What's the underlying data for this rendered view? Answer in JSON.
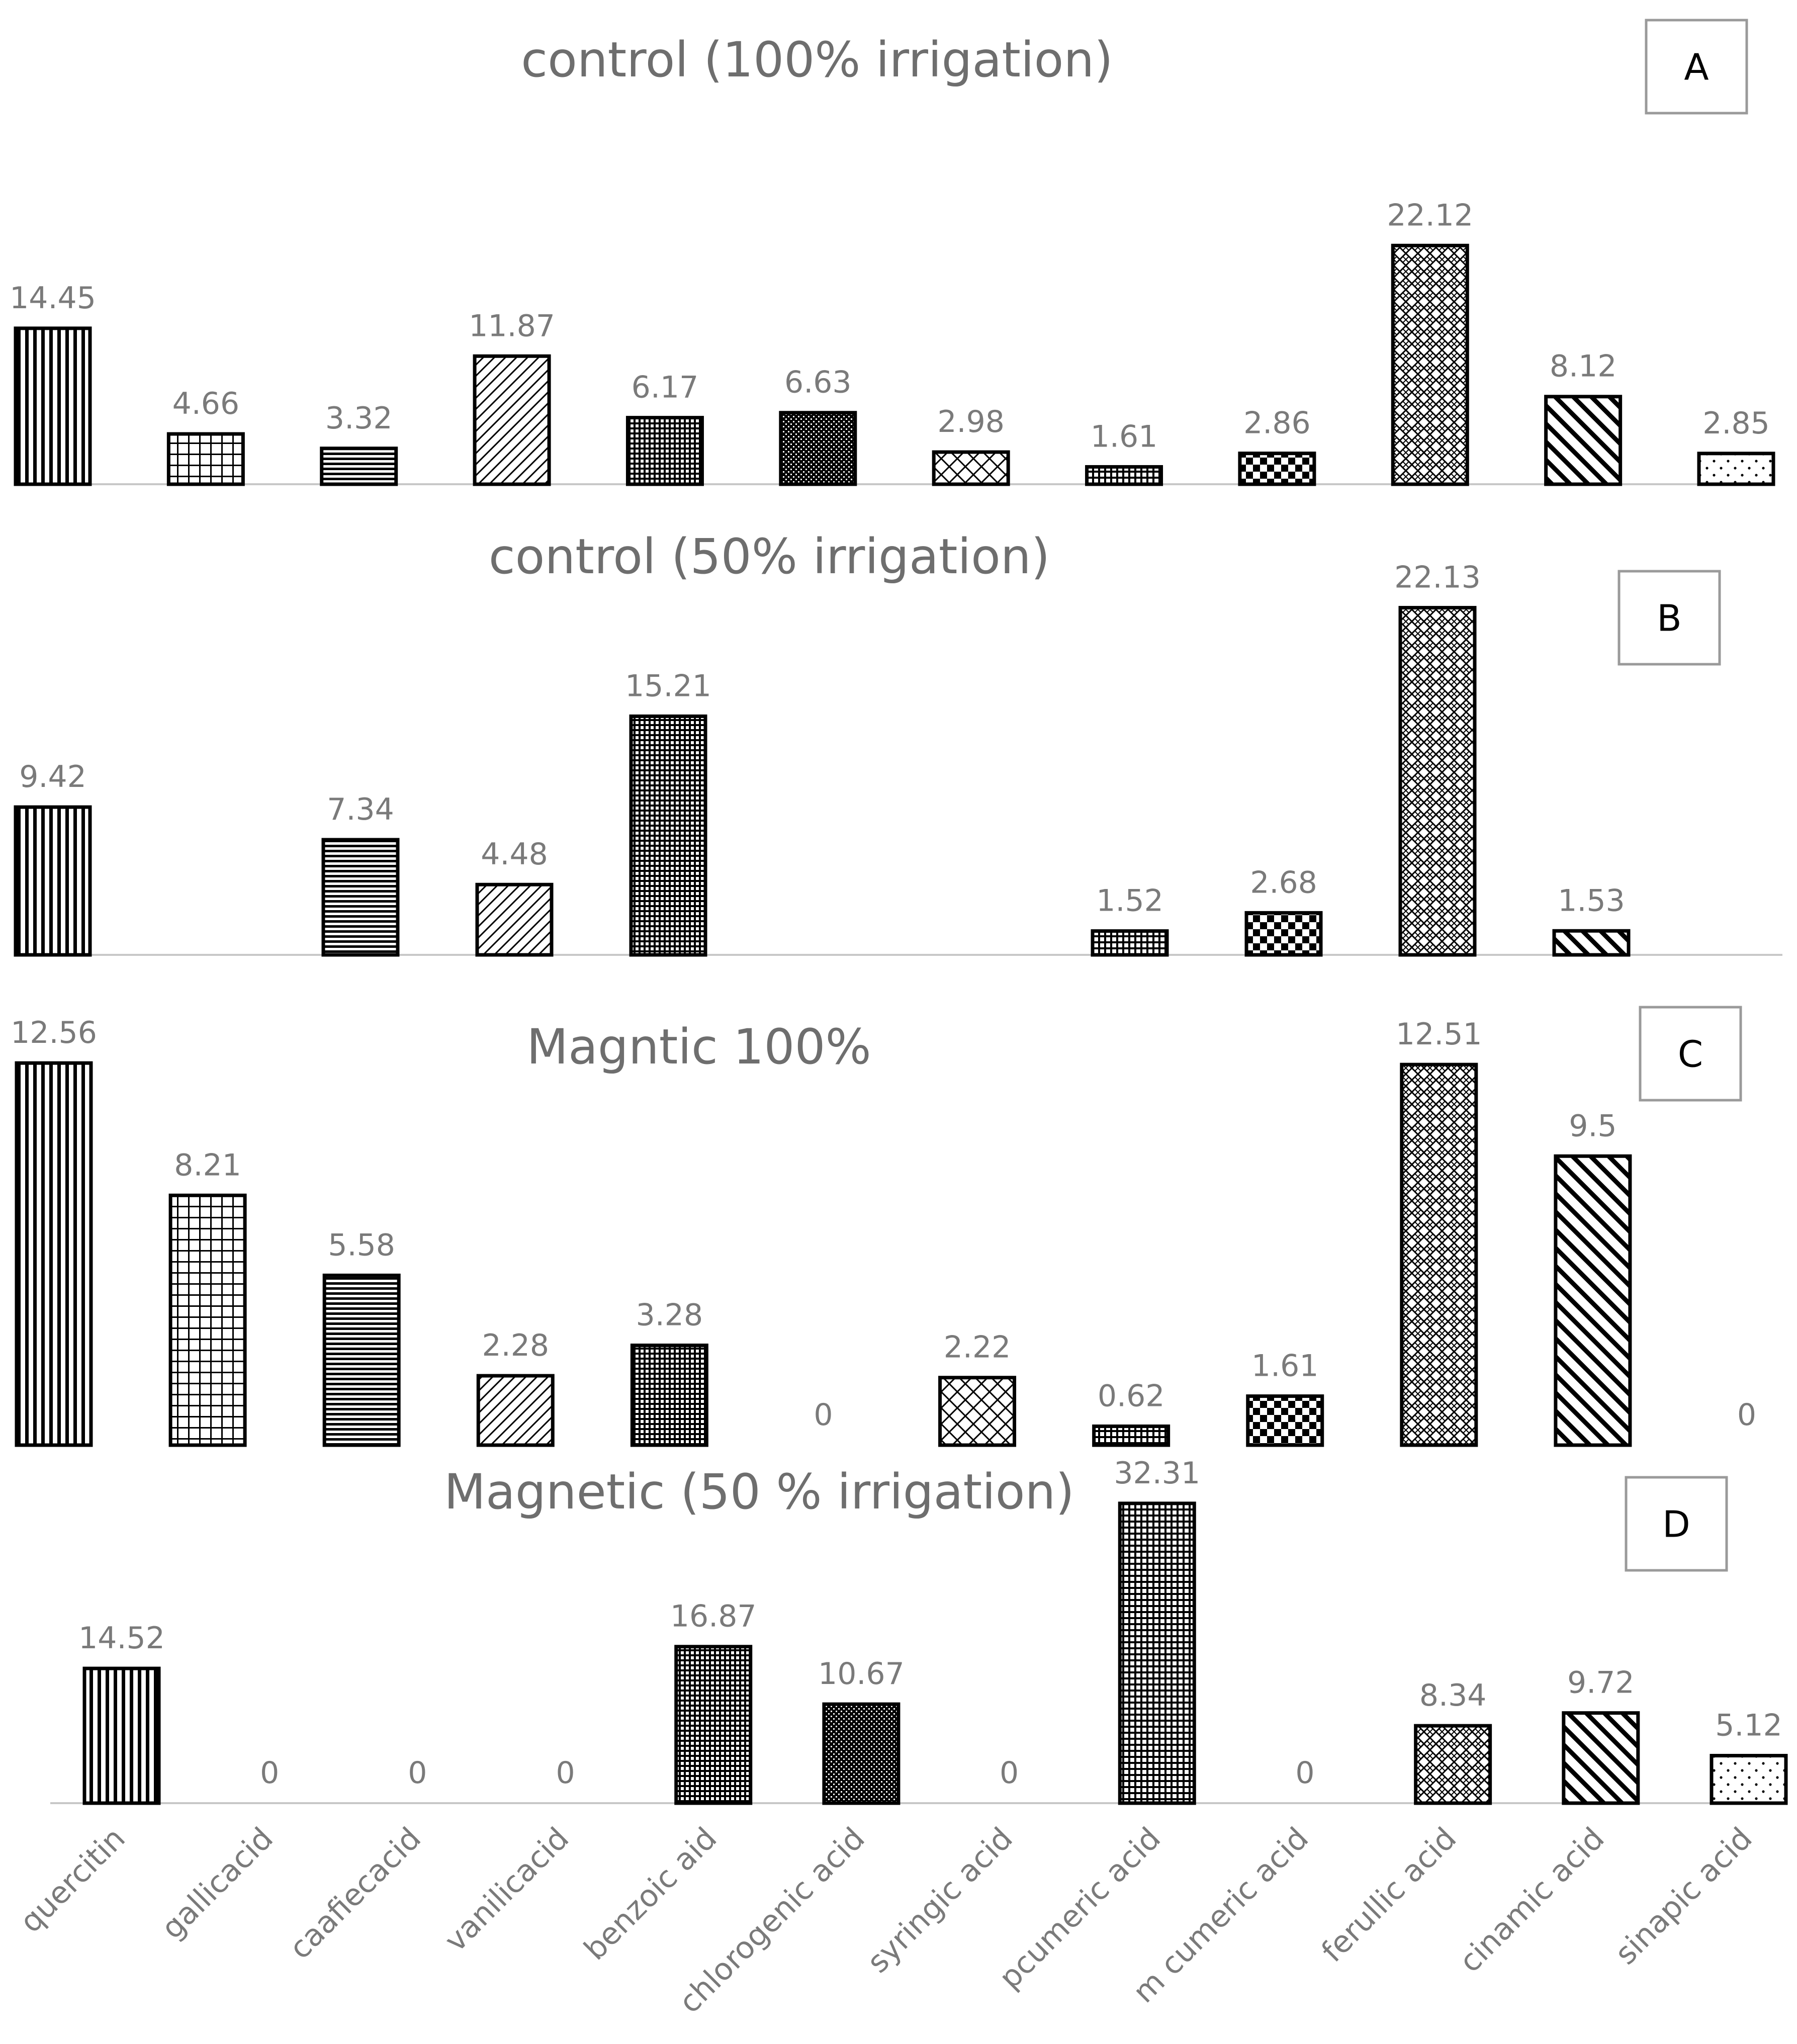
{
  "chart_data": {
    "type": "bar",
    "categories": [
      "quercitin",
      "gallicacid",
      "caafiecacid",
      "vanilicacid",
      "benzoic aid",
      "chlorogenic acid",
      "syringic acid",
      "pcumeric acid",
      "m cumeric acid",
      "ferullic acid",
      "cinamic acid",
      "sinapic acid"
    ],
    "patterns": [
      "vlines",
      "grid",
      "hlines",
      "diag",
      "checker-small",
      "dots-dense",
      "crosshatch",
      "grid-fine",
      "checker",
      "weave",
      "diag-bold",
      "dots"
    ],
    "panels": [
      {
        "letter": "A",
        "title": "control (100% irrigation)",
        "values": [
          14.45,
          4.66,
          3.32,
          11.87,
          6.17,
          6.63,
          2.98,
          1.61,
          2.86,
          22.12,
          8.12,
          2.85
        ],
        "labels": [
          "14.45",
          "4.66",
          "3.32",
          "11.87",
          "6.17",
          "6.63",
          "2.98",
          "1.61",
          "2.86",
          "22.12",
          "8.12",
          "2.85"
        ]
      },
      {
        "letter": "B",
        "title": "control (50% irrigation)",
        "values": [
          9.42,
          0,
          7.34,
          4.48,
          15.21,
          0,
          0,
          1.52,
          2.68,
          22.13,
          1.53,
          0
        ],
        "labels": [
          "9.42",
          null,
          "7.34",
          "4.48",
          "15.21",
          null,
          null,
          "1.52",
          "2.68",
          "22.13",
          "1.53",
          null
        ]
      },
      {
        "letter": "C",
        "title": "Magntic 100%",
        "values": [
          12.56,
          8.21,
          5.58,
          2.28,
          3.28,
          0,
          2.22,
          0.62,
          1.61,
          12.51,
          9.5,
          0
        ],
        "labels": [
          "12.56",
          "8.21",
          "5.58",
          "2.28",
          "3.28",
          "0",
          "2.22",
          "0.62",
          "1.61",
          "12.51",
          "9.5",
          "0"
        ]
      },
      {
        "letter": "D",
        "title": "Magnetic (50 % irrigation)",
        "values": [
          14.52,
          0,
          0,
          0,
          16.87,
          10.67,
          0,
          32.31,
          0,
          8.34,
          9.72,
          5.12
        ],
        "labels": [
          "14.52",
          "0",
          "0",
          "0",
          "16.87",
          "10.67",
          "0",
          "32.31",
          "0",
          "8.34",
          "9.72",
          "5.12"
        ]
      }
    ]
  }
}
